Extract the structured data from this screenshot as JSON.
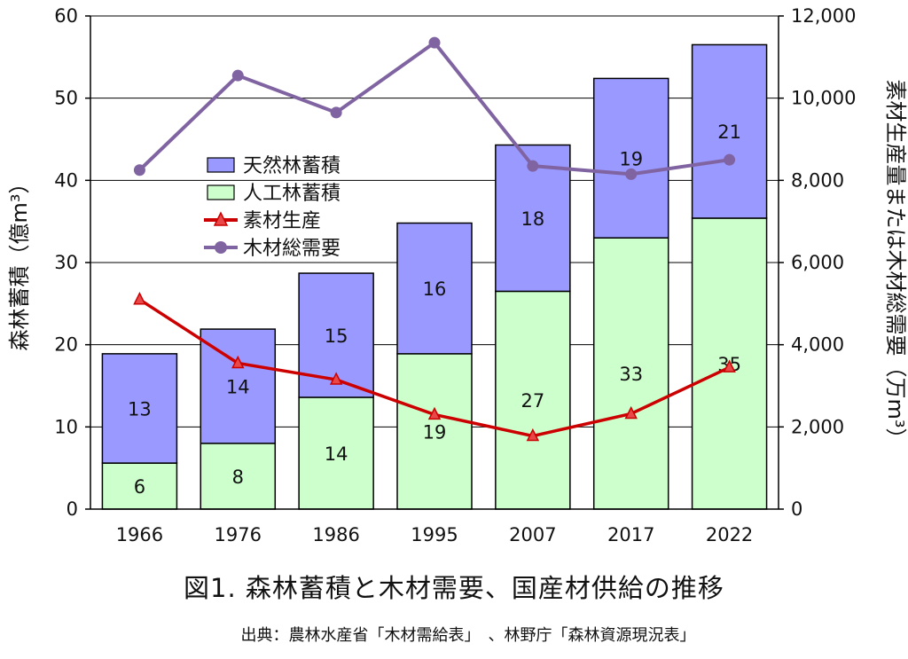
{
  "chart_data": {
    "type": "bar",
    "stacked": true,
    "categories": [
      "1966",
      "1976",
      "1986",
      "1995",
      "2007",
      "2017",
      "2022"
    ],
    "y_left": {
      "label": "森林蓄積（億m³）",
      "ylim": [
        0,
        60
      ],
      "ticks": [
        "0",
        "10",
        "20",
        "30",
        "40",
        "50",
        "60"
      ],
      "tick_values": [
        0,
        10,
        20,
        30,
        40,
        50,
        60
      ]
    },
    "y_right": {
      "label": "素材生産量または木材総需要（万m³）",
      "ylim": [
        0,
        12000
      ],
      "ticks": [
        "0",
        "2,000",
        "4,000",
        "6,000",
        "8,000",
        "10,000",
        "12,000"
      ],
      "tick_values": [
        0,
        2000,
        4000,
        6000,
        8000,
        10000,
        12000
      ]
    },
    "bar_series": [
      {
        "name": "人工林蓄積",
        "color": "#ccffcc",
        "values": [
          5.6,
          8.0,
          13.6,
          18.9,
          26.5,
          33.0,
          35.4
        ],
        "labels": [
          "6",
          "8",
          "14",
          "19",
          "27",
          "33",
          "35"
        ]
      },
      {
        "name": "天然林蓄積",
        "color": "#9999ff",
        "values": [
          13.3,
          13.9,
          15.1,
          15.9,
          17.8,
          19.4,
          21.1
        ],
        "labels": [
          "13",
          "14",
          "15",
          "16",
          "18",
          "19",
          "21"
        ]
      }
    ],
    "line_series": [
      {
        "name": "素材生産",
        "axis": "right",
        "color": "#cc0000",
        "marker": "triangle",
        "values": [
          5100,
          3550,
          3150,
          2300,
          1780,
          2320,
          3450
        ]
      },
      {
        "name": "木材総需要",
        "axis": "right",
        "color": "#8064a2",
        "marker": "circle",
        "values": [
          8250,
          10550,
          9650,
          11350,
          8350,
          8150,
          8500
        ]
      }
    ],
    "legend": {
      "placement": "upper-left",
      "order": [
        "天然林蓄積",
        "人工林蓄積",
        "素材生産",
        "木材総需要"
      ]
    }
  },
  "figure": {
    "title": "図1.  森林蓄積と木材需要、国産材供給の推移",
    "source": "出典：農林水産省「木材需給表」　、林野庁「森林資源現況表」"
  }
}
